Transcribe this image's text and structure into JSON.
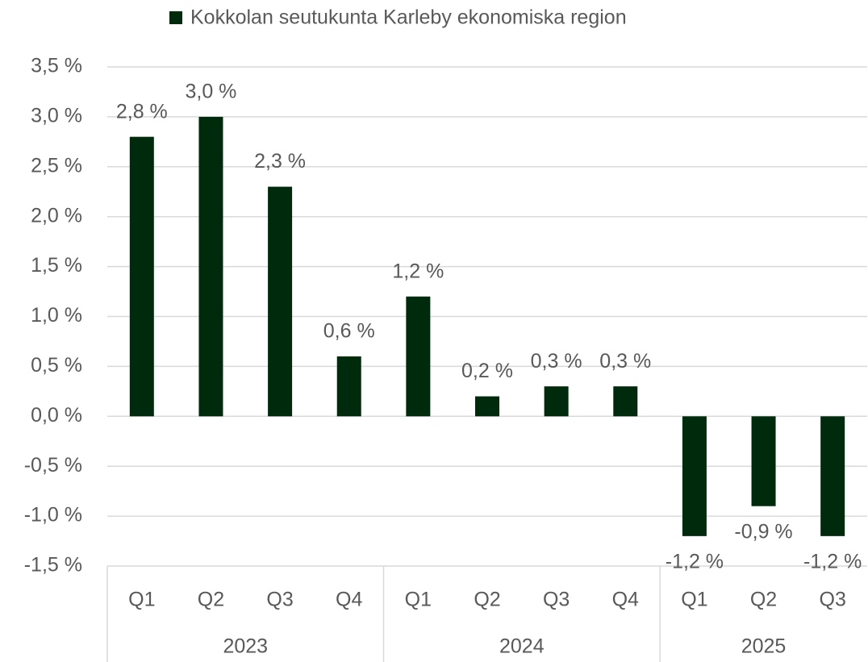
{
  "chart_data": {
    "type": "bar",
    "series": [
      {
        "name": "Kokkolan seutukunta Karleby ekonomiska region",
        "color": "#002a0c",
        "values": [
          2.8,
          3.0,
          2.3,
          0.6,
          1.2,
          0.2,
          0.3,
          0.3,
          -1.2,
          -0.9,
          -1.2
        ],
        "value_labels": [
          "2,8 %",
          "3,0 %",
          "2,3 %",
          "0,6 %",
          "1,2 %",
          "0,2 %",
          "0,3 %",
          "0,3 %",
          "-1,2 %",
          "-0,9 %",
          "-1,2 %"
        ]
      }
    ],
    "groups": [
      {
        "label": "2023",
        "categories": [
          "Q1",
          "Q2",
          "Q3",
          "Q4"
        ]
      },
      {
        "label": "2024",
        "categories": [
          "Q1",
          "Q2",
          "Q3",
          "Q4"
        ]
      },
      {
        "label": "2025",
        "categories": [
          "Q1",
          "Q2",
          "Q3"
        ]
      }
    ],
    "ylim": [
      -1.5,
      3.5
    ],
    "yticks": [
      {
        "value": -1.5,
        "label": "-1,5 %"
      },
      {
        "value": -1.0,
        "label": "-1,0 %"
      },
      {
        "value": -0.5,
        "label": "-0,5 %"
      },
      {
        "value": 0,
        "label": "0,0 %"
      },
      {
        "value": 0.5,
        "label": "0,5 %"
      },
      {
        "value": 1.0,
        "label": "1,0 %"
      },
      {
        "value": 1.5,
        "label": "1,5 %"
      },
      {
        "value": 2.0,
        "label": "2,0 %"
      },
      {
        "value": 2.5,
        "label": "2,5 %"
      },
      {
        "value": 3.0,
        "label": "3,0 %"
      },
      {
        "value": 3.5,
        "label": "3,5 %"
      }
    ],
    "grid": true,
    "legend": "top"
  }
}
